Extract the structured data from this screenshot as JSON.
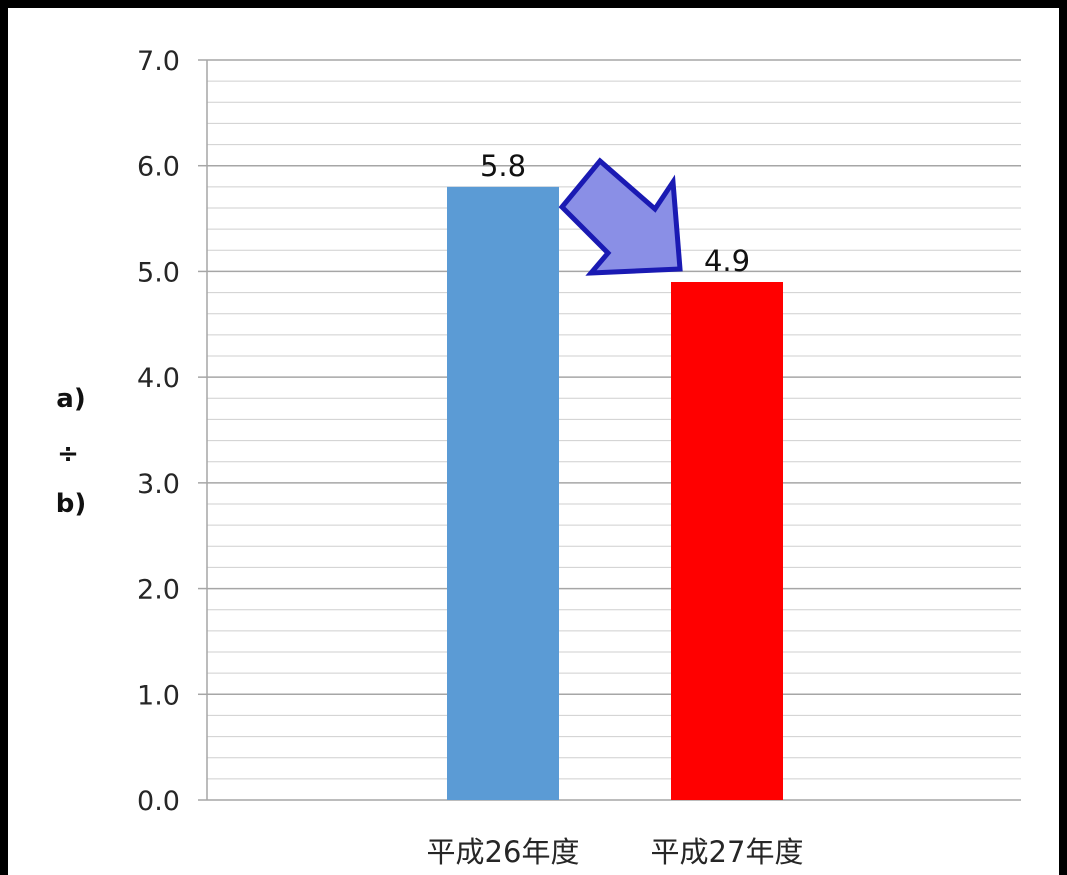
{
  "chart_data": {
    "type": "bar",
    "categories": [
      "平成26年度",
      "平成27年度"
    ],
    "values": [
      5.8,
      4.9
    ],
    "data_labels": [
      "5.8",
      "4.9"
    ],
    "bar_colors": [
      "#5B9BD5",
      "#FF0000"
    ],
    "title": "",
    "xlabel": "",
    "ylabel": [
      "a)",
      "÷",
      "b)"
    ],
    "ylim": [
      0,
      7
    ],
    "yticks": [
      0,
      1,
      2,
      3,
      4,
      5,
      6,
      7
    ],
    "ytick_labels": [
      "0.0",
      "1.0",
      "2.0",
      "3.0",
      "4.0",
      "5.0",
      "6.0",
      "7.0"
    ],
    "minor_step": 0.2,
    "grid": true,
    "annotation": {
      "type": "arrow",
      "direction": "down-right",
      "fill": "#8A8FE6",
      "stroke": "#1A1AB3"
    },
    "colors": {
      "frame": "#000000",
      "grid_major": "#A6A6A6",
      "grid_minor": "#CFCFCF"
    }
  }
}
